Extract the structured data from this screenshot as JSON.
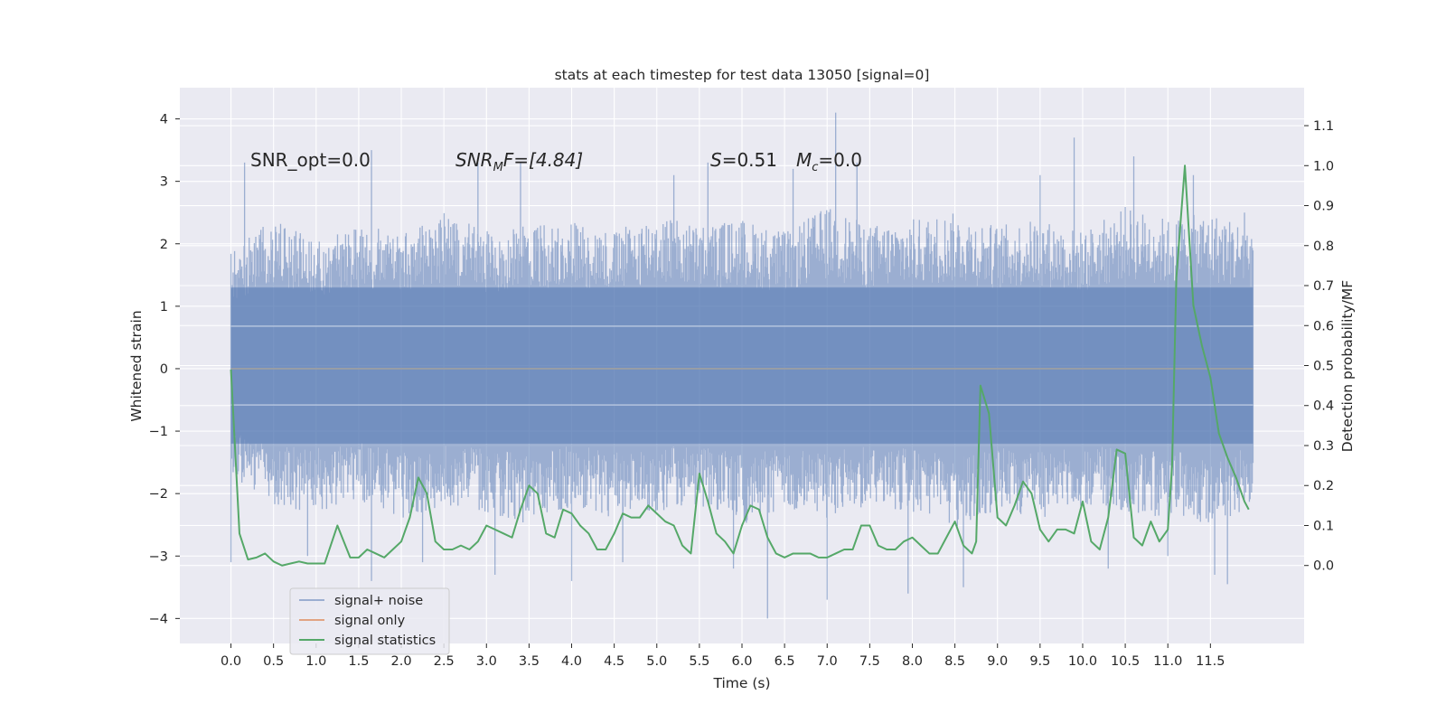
{
  "chart_data": {
    "type": "line",
    "title": "stats at each timestep for test data 13050 [signal=0]",
    "xlabel": "Time (s)",
    "ylabel_left": "Whitened strain",
    "ylabel_right": "Detection probability/MF",
    "xlim": [
      -0.6,
      12.6
    ],
    "ylim_left": [
      -4.4,
      4.5
    ],
    "ylim_right": [
      -0.195,
      1.195
    ],
    "x_ticks": [
      "0.0",
      "0.5",
      "1.0",
      "1.5",
      "2.0",
      "2.5",
      "3.0",
      "3.5",
      "4.0",
      "4.5",
      "5.0",
      "5.5",
      "6.0",
      "6.5",
      "7.0",
      "7.5",
      "8.0",
      "8.5",
      "9.0",
      "9.5",
      "10.0",
      "10.5",
      "11.0",
      "11.5"
    ],
    "y_ticks_left": [
      -4,
      -3,
      -2,
      -1,
      0,
      1,
      2,
      3,
      4
    ],
    "y_ticks_right": [
      "0.0",
      "0.1",
      "0.2",
      "0.3",
      "0.4",
      "0.5",
      "0.6",
      "0.7",
      "0.8",
      "0.9",
      "1.0",
      "1.1"
    ],
    "grid": true,
    "legend_position": "lower-left",
    "annotations": [
      {
        "id": "snr-opt",
        "text": "SNR_opt=0.0"
      },
      {
        "id": "snr-mf",
        "base": "SNR",
        "sub": "M",
        "rest": "F=[4.84]"
      },
      {
        "id": "s-stat",
        "base": "S",
        "rest": "=0.51"
      },
      {
        "id": "mc",
        "base": "M",
        "sub": "c",
        "rest": "=0.0"
      }
    ],
    "series": [
      {
        "name": "signal+ noise",
        "color": "#4c72b0",
        "alpha": 0.5,
        "axis": "left",
        "x_range": [
          0.0,
          12.0
        ],
        "envelope_upper": [
          1.9,
          2.4,
          2.1,
          2.3,
          2.2,
          2.5,
          2.2,
          2.3,
          2.4,
          2.2,
          2.5,
          2.3,
          2.4,
          2.2,
          2.6,
          2.3,
          2.4,
          2.5,
          2.3,
          2.4,
          2.2,
          2.6,
          2.4,
          2.5,
          2.3
        ],
        "envelope_lower": [
          -1.7,
          -2.2,
          -2.3,
          -2.1,
          -2.4,
          -2.2,
          -2.3,
          -2.5,
          -2.2,
          -2.4,
          -2.3,
          -2.2,
          -2.5,
          -2.3,
          -2.4,
          -2.2,
          -2.3,
          -2.6,
          -2.3,
          -2.4,
          -2.2,
          -2.3,
          -2.4,
          -2.5,
          -2.3
        ],
        "spikes": [
          [
            0.0,
            -3.1
          ],
          [
            0.16,
            3.3
          ],
          [
            0.9,
            -3.0
          ],
          [
            1.65,
            3.5
          ],
          [
            1.65,
            -3.4
          ],
          [
            2.25,
            -3.1
          ],
          [
            2.9,
            3.3
          ],
          [
            3.1,
            -3.3
          ],
          [
            3.4,
            3.3
          ],
          [
            4.0,
            -3.4
          ],
          [
            4.6,
            -3.1
          ],
          [
            5.2,
            3.1
          ],
          [
            5.6,
            3.3
          ],
          [
            5.9,
            -3.2
          ],
          [
            6.3,
            -4.0
          ],
          [
            6.6,
            3.2
          ],
          [
            7.0,
            -3.7
          ],
          [
            7.1,
            4.1
          ],
          [
            7.35,
            3.3
          ],
          [
            7.95,
            -3.6
          ],
          [
            8.6,
            -3.5
          ],
          [
            9.5,
            3.1
          ],
          [
            9.9,
            3.7
          ],
          [
            10.3,
            -3.2
          ],
          [
            10.6,
            3.4
          ],
          [
            11.0,
            -3.0
          ],
          [
            11.3,
            3.1
          ],
          [
            11.55,
            -3.3
          ],
          [
            11.7,
            -3.45
          ],
          [
            11.9,
            2.5
          ]
        ]
      },
      {
        "name": "signal only",
        "color": "#dd8452",
        "axis": "left",
        "x": [
          0.0,
          12.0
        ],
        "y": [
          0.0,
          0.0
        ]
      },
      {
        "name": "signal statistics",
        "color": "#55a868",
        "axis": "right",
        "x": [
          0.0,
          0.1,
          0.2,
          0.3,
          0.4,
          0.5,
          0.6,
          0.7,
          0.8,
          0.9,
          1.0,
          1.1,
          1.25,
          1.4,
          1.5,
          1.6,
          1.7,
          1.8,
          1.9,
          2.0,
          2.1,
          2.2,
          2.3,
          2.4,
          2.5,
          2.6,
          2.7,
          2.8,
          2.9,
          3.0,
          3.1,
          3.2,
          3.3,
          3.4,
          3.5,
          3.6,
          3.7,
          3.8,
          3.9,
          4.0,
          4.1,
          4.2,
          4.3,
          4.4,
          4.5,
          4.6,
          4.7,
          4.8,
          4.9,
          5.0,
          5.1,
          5.2,
          5.3,
          5.4,
          5.5,
          5.6,
          5.7,
          5.8,
          5.9,
          6.0,
          6.1,
          6.2,
          6.3,
          6.4,
          6.5,
          6.6,
          6.7,
          6.8,
          6.9,
          7.0,
          7.1,
          7.2,
          7.3,
          7.4,
          7.5,
          7.6,
          7.7,
          7.8,
          7.9,
          8.0,
          8.1,
          8.2,
          8.3,
          8.4,
          8.5,
          8.6,
          8.7,
          8.75,
          8.8,
          8.9,
          9.0,
          9.1,
          9.2,
          9.3,
          9.4,
          9.5,
          9.6,
          9.7,
          9.8,
          9.9,
          10.0,
          10.1,
          10.2,
          10.3,
          10.4,
          10.5,
          10.6,
          10.7,
          10.8,
          10.9,
          11.0,
          11.05,
          11.1,
          11.2,
          11.3,
          11.4,
          11.5,
          11.6,
          11.7,
          11.8,
          11.9,
          11.95
        ],
        "y": [
          0.49,
          0.08,
          0.015,
          0.02,
          0.03,
          0.01,
          0.0,
          0.005,
          0.01,
          0.005,
          0.005,
          0.005,
          0.1,
          0.02,
          0.02,
          0.04,
          0.03,
          0.02,
          0.04,
          0.06,
          0.12,
          0.22,
          0.18,
          0.06,
          0.04,
          0.04,
          0.05,
          0.04,
          0.06,
          0.1,
          0.09,
          0.08,
          0.07,
          0.14,
          0.2,
          0.18,
          0.08,
          0.07,
          0.14,
          0.13,
          0.1,
          0.08,
          0.04,
          0.04,
          0.08,
          0.13,
          0.12,
          0.12,
          0.15,
          0.13,
          0.11,
          0.1,
          0.05,
          0.03,
          0.23,
          0.16,
          0.08,
          0.06,
          0.03,
          0.1,
          0.15,
          0.14,
          0.07,
          0.03,
          0.02,
          0.03,
          0.03,
          0.03,
          0.02,
          0.02,
          0.03,
          0.04,
          0.04,
          0.1,
          0.1,
          0.05,
          0.04,
          0.04,
          0.06,
          0.07,
          0.05,
          0.03,
          0.03,
          0.07,
          0.11,
          0.05,
          0.03,
          0.06,
          0.45,
          0.38,
          0.12,
          0.1,
          0.15,
          0.21,
          0.18,
          0.09,
          0.06,
          0.09,
          0.09,
          0.08,
          0.16,
          0.06,
          0.04,
          0.12,
          0.29,
          0.28,
          0.07,
          0.05,
          0.11,
          0.06,
          0.09,
          0.25,
          0.72,
          1.0,
          0.65,
          0.55,
          0.47,
          0.33,
          0.27,
          0.22,
          0.16,
          0.14
        ]
      }
    ]
  }
}
